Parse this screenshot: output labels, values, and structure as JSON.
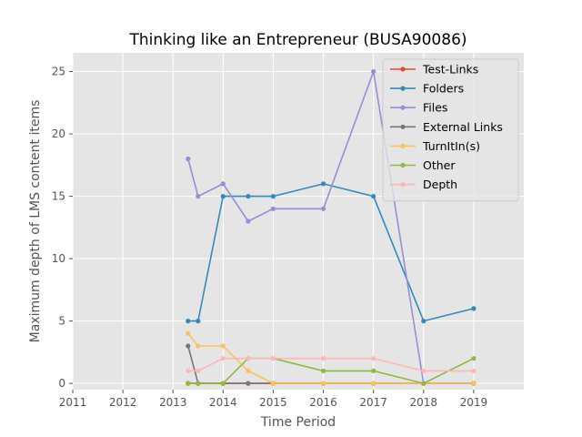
{
  "chart_data": {
    "type": "line",
    "title": "Thinking like an Entrepreneur (BUSA90086)",
    "xlabel": "Time Period",
    "ylabel": "Maximum depth of LMS content items",
    "xlim": [
      2011,
      2020
    ],
    "ylim": [
      -0.5,
      26.5
    ],
    "x_ticks": [
      2011,
      2012,
      2013,
      2014,
      2015,
      2016,
      2017,
      2018,
      2019
    ],
    "y_ticks": [
      0,
      5,
      10,
      15,
      20,
      25
    ],
    "grid": true,
    "legend_position": "top-right",
    "series": [
      {
        "name": "Test-Links",
        "color": "#E24A33",
        "points": [
          [
            2013.3,
            0
          ],
          [
            2013.5,
            0
          ],
          [
            2014.0,
            0
          ],
          [
            2014.5,
            0
          ],
          [
            2015.0,
            0
          ],
          [
            2016.0,
            0
          ],
          [
            2017.0,
            0
          ],
          [
            2018.0,
            0
          ],
          [
            2019.0,
            0
          ]
        ]
      },
      {
        "name": "Folders",
        "color": "#348ABD",
        "points": [
          [
            2013.3,
            5
          ],
          [
            2013.5,
            5
          ],
          [
            2014.0,
            15
          ],
          [
            2014.5,
            15
          ],
          [
            2015.0,
            15
          ],
          [
            2016.0,
            16
          ],
          [
            2017.0,
            15
          ],
          [
            2018.0,
            5
          ],
          [
            2019.0,
            6
          ]
        ]
      },
      {
        "name": "Files",
        "color": "#988ED5",
        "points": [
          [
            2013.3,
            18
          ],
          [
            2013.5,
            15
          ],
          [
            2014.0,
            16
          ],
          [
            2014.5,
            13
          ],
          [
            2015.0,
            14
          ],
          [
            2016.0,
            14
          ],
          [
            2017.0,
            25
          ],
          [
            2018.0,
            0
          ],
          [
            2019.0,
            0
          ]
        ]
      },
      {
        "name": "External Links",
        "color": "#777777",
        "points": [
          [
            2013.3,
            3
          ],
          [
            2013.5,
            0
          ],
          [
            2014.0,
            0
          ],
          [
            2014.5,
            0
          ],
          [
            2015.0,
            0
          ],
          [
            2016.0,
            0
          ],
          [
            2017.0,
            0
          ],
          [
            2018.0,
            0
          ],
          [
            2019.0,
            0
          ]
        ]
      },
      {
        "name": "TurnItIn(s)",
        "color": "#FBC15E",
        "points": [
          [
            2013.3,
            4
          ],
          [
            2013.5,
            3
          ],
          [
            2014.0,
            3
          ],
          [
            2014.5,
            1
          ],
          [
            2015.0,
            0
          ],
          [
            2016.0,
            0
          ],
          [
            2017.0,
            0
          ],
          [
            2018.0,
            0
          ],
          [
            2019.0,
            0
          ]
        ]
      },
      {
        "name": "Other",
        "color": "#8EBA42",
        "points": [
          [
            2013.3,
            0
          ],
          [
            2013.5,
            0
          ],
          [
            2014.0,
            0
          ],
          [
            2014.5,
            2
          ],
          [
            2015.0,
            2
          ],
          [
            2016.0,
            1
          ],
          [
            2017.0,
            1
          ],
          [
            2018.0,
            0
          ],
          [
            2019.0,
            2
          ]
        ]
      },
      {
        "name": "Depth",
        "color": "#FFB5B8",
        "points": [
          [
            2013.3,
            1
          ],
          [
            2013.5,
            1
          ],
          [
            2014.0,
            2
          ],
          [
            2014.5,
            2
          ],
          [
            2015.0,
            2
          ],
          [
            2016.0,
            2
          ],
          [
            2017.0,
            2
          ],
          [
            2018.0,
            1
          ],
          [
            2019.0,
            1
          ]
        ]
      }
    ]
  }
}
